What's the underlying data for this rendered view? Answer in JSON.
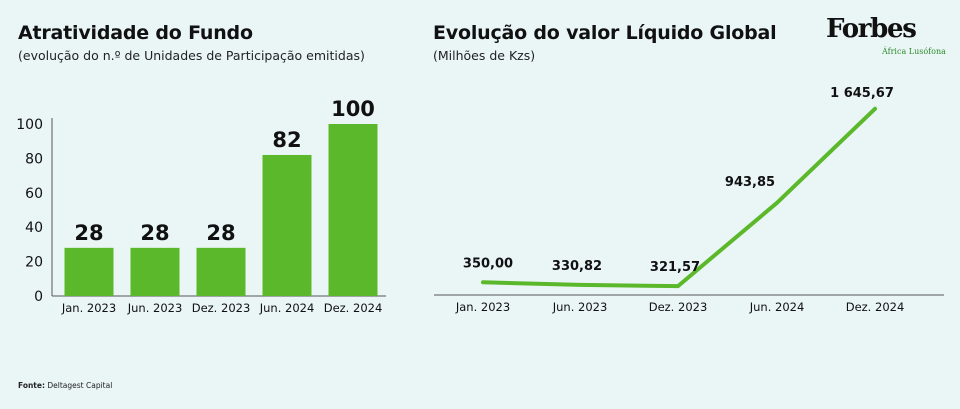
{
  "left": {
    "title": "Atratividade do Fundo",
    "subtitle": "(evolução do n.º de Unidades de Participação emitidas)"
  },
  "right": {
    "title": "Evolução do valor Líquido Global",
    "subtitle": "(Milhões de Kzs)"
  },
  "brand": {
    "name": "Forbes",
    "edition": "África Lusófona"
  },
  "source": {
    "label": "Fonte:",
    "text": "Deltagest Capital"
  },
  "colors": {
    "bar": "#5ab82a",
    "line": "#5ab82a",
    "axis": "#555555",
    "background": "#eaf6f6"
  },
  "chart_data": [
    {
      "type": "bar",
      "categories": [
        "Jan. 2023",
        "Jun. 2023",
        "Dez. 2023",
        "Jun. 2024",
        "Dez. 2024"
      ],
      "values": [
        28,
        28,
        28,
        82,
        100
      ],
      "data_labels": [
        "28",
        "28",
        "28",
        "82",
        "100"
      ],
      "yticks": [
        0,
        20,
        40,
        60,
        80,
        100
      ],
      "ylim": [
        0,
        100
      ],
      "grid": false
    },
    {
      "type": "line",
      "categories": [
        "Jan. 2023",
        "Jun. 2023",
        "Dez. 2023",
        "Jun. 2024",
        "Dez. 2024"
      ],
      "values": [
        350.0,
        330.82,
        321.57,
        943.85,
        1645.67
      ],
      "data_labels": [
        "350,00",
        "330,82",
        "321,57",
        "943,85",
        "1 645,67"
      ],
      "ylim": [
        0,
        1800
      ],
      "grid": false
    }
  ]
}
